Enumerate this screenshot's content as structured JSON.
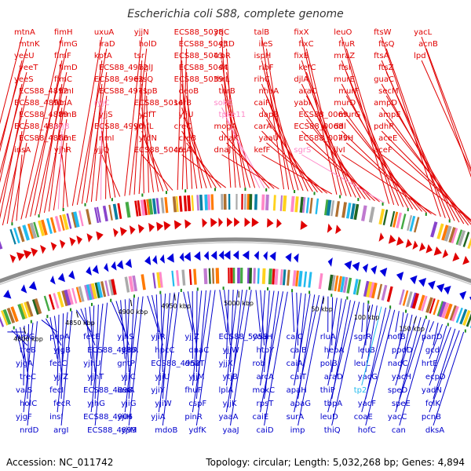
{
  "title": "Escherichia coli S88, complete genome",
  "footer": {
    "accession": "Accession: NC_011742",
    "summary": "Topology: circular; Length: 5,032,268 bp; Genes: 4,894"
  },
  "colors": {
    "forward_label": "#e00000",
    "reverse_label": "#0000cc",
    "rna_forward": "#ff88c8",
    "rna_reverse": "#22bbee",
    "tick": "#000000",
    "backbone": "#8c8c8c"
  },
  "ticks": [
    "4800 kbp",
    "4850 kbp",
    "4900 kbp",
    "4950 kbp",
    "5000 kbp",
    "50 kbp",
    "100 kbp",
    "150 kbp"
  ],
  "forward_genes": [
    {
      "label": "mtnA",
      "pink": false
    },
    {
      "label": "mtnK",
      "pink": false
    },
    {
      "label": "yeeU",
      "pink": false
    },
    {
      "label": "yeeT",
      "pink": false
    },
    {
      "label": "yeeS",
      "pink": false
    },
    {
      "label": "ECS88_4892",
      "pink": false
    },
    {
      "label": "ECS88_4891",
      "pink": false
    },
    {
      "label": "ECS88_4889",
      "pink": false
    },
    {
      "label": "ECS88_4887",
      "pink": false
    },
    {
      "label": "ECS88_4886",
      "pink": false
    },
    {
      "label": "insA",
      "pink": false
    },
    {
      "label": "fimH",
      "pink": false
    },
    {
      "label": "fimG",
      "pink": false
    },
    {
      "label": "fimF",
      "pink": false
    },
    {
      "label": "fimD",
      "pink": false
    },
    {
      "label": "fimC",
      "pink": false
    },
    {
      "label": "fimI",
      "pink": false
    },
    {
      "label": "fimA",
      "pink": false
    },
    {
      "label": "fimB",
      "pink": false
    },
    {
      "label": "ryjB",
      "pink": true
    },
    {
      "label": "fimE",
      "pink": false
    },
    {
      "label": "yjhR",
      "pink": false
    },
    {
      "label": "uxuA",
      "pink": false
    },
    {
      "label": "iraD",
      "pink": false
    },
    {
      "label": "kptA",
      "pink": false
    },
    {
      "label": "ECS88_4972",
      "pink": false
    },
    {
      "label": "ECS88_4962",
      "pink": false
    },
    {
      "label": "ECS88_4971",
      "pink": false
    },
    {
      "label": "ryjC",
      "pink": true
    },
    {
      "label": "yjjS",
      "pink": false
    },
    {
      "label": "ECS88_4990",
      "pink": false
    },
    {
      "label": "rimI",
      "pink": false
    },
    {
      "label": "yjjQ",
      "pink": false
    },
    {
      "label": "yjjN",
      "pink": false
    },
    {
      "label": "holD",
      "pink": false
    },
    {
      "label": "tsr",
      "pink": false
    },
    {
      "label": "bglJ",
      "pink": false
    },
    {
      "label": "essQ",
      "pink": false
    },
    {
      "label": "cspB",
      "pink": false
    },
    {
      "label": "ECS88_5014",
      "pink": false
    },
    {
      "label": "ydfT",
      "pink": false
    },
    {
      "label": "ymfL",
      "pink": false
    },
    {
      "label": "yfdN",
      "pink": false
    },
    {
      "label": "ECS88_5046",
      "pink": false
    },
    {
      "label": "ECS88_5038",
      "pink": false
    },
    {
      "label": "ECS88_5045",
      "pink": false
    },
    {
      "label": "ECS88_5043",
      "pink": false
    },
    {
      "label": "ECS88_5044",
      "pink": false
    },
    {
      "label": "ECS88_5039",
      "pink": false
    },
    {
      "label": "deoB",
      "pink": false
    },
    {
      "label": "serB",
      "pink": false
    },
    {
      "label": "yjjU",
      "pink": false
    },
    {
      "label": "creC",
      "pink": false
    },
    {
      "label": "creB",
      "pink": false
    },
    {
      "label": "creA",
      "pink": false
    },
    {
      "label": "ytjC",
      "pink": false
    },
    {
      "label": "yjtD",
      "pink": false
    },
    {
      "label": "trpR",
      "pink": false
    },
    {
      "label": "slt",
      "pink": false
    },
    {
      "label": "thrL",
      "pink": false
    },
    {
      "label": "thrB",
      "pink": false
    },
    {
      "label": "sokC",
      "pink": true
    },
    {
      "label": "tpke11",
      "pink": true
    },
    {
      "label": "mogA",
      "pink": false
    },
    {
      "label": "dnaK",
      "pink": false
    },
    {
      "label": "dnaJ",
      "pink": false
    },
    {
      "label": "talB",
      "pink": false
    },
    {
      "label": "ileS",
      "pink": false
    },
    {
      "label": "ispH",
      "pink": false
    },
    {
      "label": "ribF",
      "pink": false
    },
    {
      "label": "rihC",
      "pink": false
    },
    {
      "label": "nhaA",
      "pink": false
    },
    {
      "label": "caiF",
      "pink": false
    },
    {
      "label": "dapB",
      "pink": false
    },
    {
      "label": "carA",
      "pink": false
    },
    {
      "label": "yaaU",
      "pink": false
    },
    {
      "label": "kefF",
      "pink": false
    },
    {
      "label": "fixX",
      "pink": false
    },
    {
      "label": "fixC",
      "pink": false
    },
    {
      "label": "fixB",
      "pink": false
    },
    {
      "label": "kefC",
      "pink": false
    },
    {
      "label": "djlA",
      "pink": false
    },
    {
      "label": "araC",
      "pink": false
    },
    {
      "label": "yabI",
      "pink": false
    },
    {
      "label": "ECS88_0069",
      "pink": false
    },
    {
      "label": "ECS88_0068",
      "pink": false
    },
    {
      "label": "ECS88_0075",
      "pink": false
    },
    {
      "label": "sgrS",
      "pink": true
    },
    {
      "label": "leuO",
      "pink": false
    },
    {
      "label": "fruR",
      "pink": false
    },
    {
      "label": "mraZ",
      "pink": false
    },
    {
      "label": "ftsI",
      "pink": false
    },
    {
      "label": "murE",
      "pink": false
    },
    {
      "label": "murF",
      "pink": false
    },
    {
      "label": "murD",
      "pink": false
    },
    {
      "label": "murG",
      "pink": false
    },
    {
      "label": "ddl",
      "pink": false
    },
    {
      "label": "ilvH",
      "pink": false
    },
    {
      "label": "ilvI",
      "pink": false
    },
    {
      "label": "ftsW",
      "pink": false
    },
    {
      "label": "ftsQ",
      "pink": false
    },
    {
      "label": "ftsA",
      "pink": false
    },
    {
      "label": "ftsZ",
      "pink": false
    },
    {
      "label": "guaC",
      "pink": false
    },
    {
      "label": "secM",
      "pink": false
    },
    {
      "label": "ampD",
      "pink": false
    },
    {
      "label": "ampE",
      "pink": false
    },
    {
      "label": "pdhR",
      "pink": false
    },
    {
      "label": "aceE",
      "pink": false
    },
    {
      "label": "aceF",
      "pink": false
    },
    {
      "label": "yacL",
      "pink": false
    },
    {
      "label": "acnB",
      "pink": false
    },
    {
      "label": "lpd",
      "pink": false
    }
  ],
  "reverse_genes": [
    {
      "label": "nrdG",
      "cyan": false
    },
    {
      "label": "treB",
      "cyan": false
    },
    {
      "label": "yjgA",
      "cyan": false
    },
    {
      "label": "treC",
      "cyan": false
    },
    {
      "label": "valS",
      "cyan": false
    },
    {
      "label": "holC",
      "cyan": false
    },
    {
      "label": "yjgF",
      "cyan": false
    },
    {
      "label": "nrdD",
      "cyan": false
    },
    {
      "label": "pepA",
      "cyan": false
    },
    {
      "label": "yjgB",
      "cyan": false
    },
    {
      "label": "fecC",
      "cyan": false
    },
    {
      "label": "yjfZ",
      "cyan": false
    },
    {
      "label": "fecI",
      "cyan": false
    },
    {
      "label": "fecR",
      "cyan": false
    },
    {
      "label": "insI",
      "cyan": false
    },
    {
      "label": "argI",
      "cyan": false
    },
    {
      "label": "fecE",
      "cyan": false
    },
    {
      "label": "ECS88_4885",
      "cyan": false
    },
    {
      "label": "yjhU",
      "cyan": false
    },
    {
      "label": "yjhT",
      "cyan": false
    },
    {
      "label": "ECS88_4898",
      "cyan": false
    },
    {
      "label": "yjhG",
      "cyan": false
    },
    {
      "label": "ECS88_4906",
      "cyan": false
    },
    {
      "label": "ECS88_4899",
      "cyan": false
    },
    {
      "label": "yjhS",
      "cyan": false
    },
    {
      "label": "yjhA",
      "cyan": false
    },
    {
      "label": "gntP",
      "cyan": false
    },
    {
      "label": "yjiC",
      "cyan": false
    },
    {
      "label": "iadA",
      "cyan": false
    },
    {
      "label": "yjiG",
      "cyan": false
    },
    {
      "label": "yjiH",
      "cyan": false
    },
    {
      "label": "yjiM",
      "cyan": false
    },
    {
      "label": "yjiR",
      "cyan": false
    },
    {
      "label": "hpcC",
      "cyan": false
    },
    {
      "label": "ECS88_4952",
      "cyan": false
    },
    {
      "label": "yjiU",
      "cyan": false
    },
    {
      "label": "yjiY",
      "cyan": false
    },
    {
      "label": "yjiW",
      "cyan": false
    },
    {
      "label": "yjiA",
      "cyan": false
    },
    {
      "label": "mdoB",
      "cyan": false
    },
    {
      "label": "yjjZ",
      "cyan": false
    },
    {
      "label": "dnaC",
      "cyan": false
    },
    {
      "label": "dnaT",
      "cyan": false
    },
    {
      "label": "yjjM",
      "cyan": false
    },
    {
      "label": "fhuF",
      "cyan": false
    },
    {
      "label": "cspF",
      "cyan": false
    },
    {
      "label": "pinR",
      "cyan": false
    },
    {
      "label": "ydfK",
      "cyan": false
    },
    {
      "label": "ECS88_5053",
      "cyan": false
    },
    {
      "label": "yjjW",
      "cyan": false
    },
    {
      "label": "yjjX",
      "cyan": false
    },
    {
      "label": "ytjB",
      "cyan": false
    },
    {
      "label": "lplA",
      "cyan": false
    },
    {
      "label": "yjjK",
      "cyan": false
    },
    {
      "label": "yaaA",
      "cyan": false
    },
    {
      "label": "yaaJ",
      "cyan": false
    },
    {
      "label": "yaaH",
      "cyan": false
    },
    {
      "label": "htpY",
      "cyan": false
    },
    {
      "label": "rob",
      "cyan": false
    },
    {
      "label": "arcA",
      "cyan": false
    },
    {
      "label": "mokC",
      "cyan": false
    },
    {
      "label": "rpsT",
      "cyan": false
    },
    {
      "label": "caiE",
      "cyan": false
    },
    {
      "label": "caiD",
      "cyan": false
    },
    {
      "label": "caiC",
      "cyan": false
    },
    {
      "label": "caiB",
      "cyan": false
    },
    {
      "label": "caiA",
      "cyan": false
    },
    {
      "label": "caiT",
      "cyan": false
    },
    {
      "label": "apaH",
      "cyan": false
    },
    {
      "label": "apaG",
      "cyan": false
    },
    {
      "label": "surA",
      "cyan": false
    },
    {
      "label": "imp",
      "cyan": false
    },
    {
      "label": "rluA",
      "cyan": false
    },
    {
      "label": "hepA",
      "cyan": false
    },
    {
      "label": "polB",
      "cyan": false
    },
    {
      "label": "araD",
      "cyan": false
    },
    {
      "label": "thiP",
      "cyan": false
    },
    {
      "label": "tbpA",
      "cyan": false
    },
    {
      "label": "leuD",
      "cyan": false
    },
    {
      "label": "thiQ",
      "cyan": false
    },
    {
      "label": "sgrR",
      "cyan": false
    },
    {
      "label": "leuB",
      "cyan": false
    },
    {
      "label": "leuL",
      "cyan": false
    },
    {
      "label": "yacG",
      "cyan": false
    },
    {
      "label": "tp2",
      "cyan": true
    },
    {
      "label": "yacF",
      "cyan": false
    },
    {
      "label": "coaE",
      "cyan": false
    },
    {
      "label": "hofC",
      "cyan": false
    },
    {
      "label": "hofB",
      "cyan": false
    },
    {
      "label": "ppdD",
      "cyan": false
    },
    {
      "label": "nadC",
      "cyan": false
    },
    {
      "label": "yacH",
      "cyan": false
    },
    {
      "label": "speD",
      "cyan": false
    },
    {
      "label": "speE",
      "cyan": false
    },
    {
      "label": "yacC",
      "cyan": false
    },
    {
      "label": "can",
      "cyan": false
    },
    {
      "label": "panD",
      "cyan": false
    },
    {
      "label": "gcd",
      "cyan": false
    },
    {
      "label": "hrtE",
      "cyan": false
    },
    {
      "label": "ecpD",
      "cyan": false
    },
    {
      "label": "yadN",
      "cyan": false
    },
    {
      "label": "folK",
      "cyan": false
    },
    {
      "label": "pcnB",
      "cyan": false
    },
    {
      "label": "dksA",
      "cyan": false
    }
  ]
}
